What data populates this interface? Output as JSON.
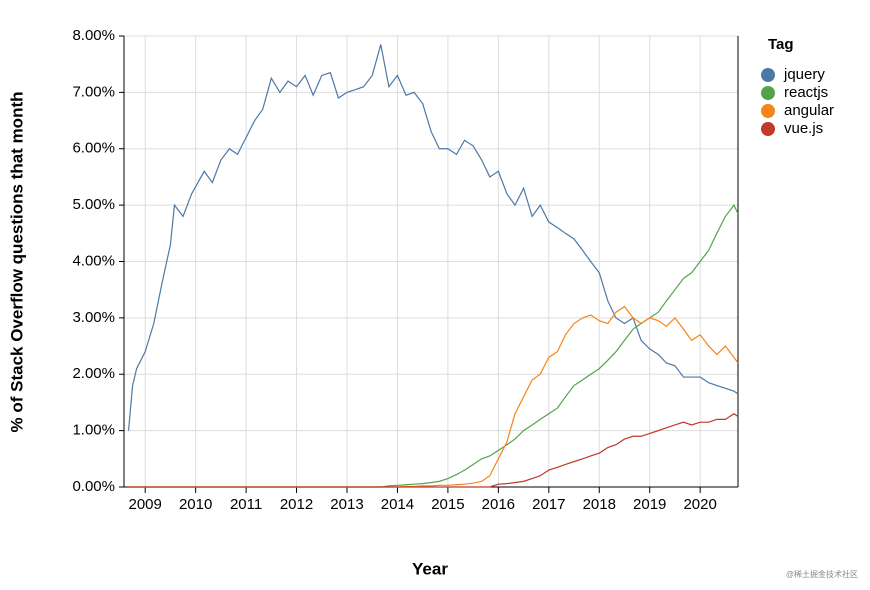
{
  "chart_data": {
    "type": "line",
    "x_label": "Year",
    "y_label": "% of Stack Overflow questions that month",
    "legend_title": "Tag",
    "legend": "right",
    "grid": true,
    "watermark": "@稀土掘金技术社区",
    "x": [
      2008.67,
      2008.75,
      2008.83,
      2009.0,
      2009.17,
      2009.33,
      2009.5,
      2009.58,
      2009.75,
      2009.92,
      2010.17,
      2010.33,
      2010.5,
      2010.67,
      2010.83,
      2011.0,
      2011.17,
      2011.33,
      2011.5,
      2011.67,
      2011.83,
      2012.0,
      2012.17,
      2012.33,
      2012.5,
      2012.67,
      2012.83,
      2013.0,
      2013.17,
      2013.33,
      2013.5,
      2013.67,
      2013.83,
      2014.0,
      2014.17,
      2014.33,
      2014.5,
      2014.67,
      2014.83,
      2015.0,
      2015.17,
      2015.33,
      2015.5,
      2015.67,
      2015.83,
      2016.0,
      2016.17,
      2016.33,
      2016.5,
      2016.67,
      2016.83,
      2017.0,
      2017.17,
      2017.33,
      2017.5,
      2017.67,
      2017.83,
      2018.0,
      2018.17,
      2018.33,
      2018.5,
      2018.67,
      2018.83,
      2019.0,
      2019.17,
      2019.33,
      2019.5,
      2019.67,
      2019.83,
      2020.0,
      2020.17,
      2020.33,
      2020.5,
      2020.67,
      2020.75
    ],
    "series": [
      {
        "name": "jquery",
        "color": "#4c78a8",
        "values": [
          1.0,
          1.8,
          2.1,
          2.4,
          2.9,
          3.6,
          4.3,
          5.0,
          4.8,
          5.2,
          5.6,
          5.4,
          5.8,
          6.0,
          5.9,
          6.2,
          6.5,
          6.7,
          7.25,
          7.0,
          7.2,
          7.1,
          7.3,
          6.95,
          7.3,
          7.35,
          6.9,
          7.0,
          7.05,
          7.1,
          7.3,
          7.85,
          7.1,
          7.3,
          6.95,
          7.0,
          6.8,
          6.3,
          6.0,
          6.0,
          5.9,
          6.15,
          6.05,
          5.8,
          5.5,
          5.6,
          5.2,
          5.0,
          5.3,
          4.8,
          5.0,
          4.7,
          4.6,
          4.5,
          4.4,
          4.2,
          4.0,
          3.8,
          3.3,
          3.0,
          2.9,
          3.0,
          2.6,
          2.45,
          2.35,
          2.2,
          2.15,
          1.95,
          1.95,
          1.95,
          1.85,
          1.8,
          1.75,
          1.7,
          1.65
        ]
      },
      {
        "name": "reactjs",
        "color": "#54a24b",
        "values": [
          0,
          0,
          0,
          0,
          0,
          0,
          0,
          0,
          0,
          0,
          0,
          0,
          0,
          0,
          0,
          0,
          0,
          0,
          0,
          0,
          0,
          0,
          0,
          0,
          0,
          0,
          0,
          0,
          0,
          0,
          0,
          0,
          0.02,
          0.03,
          0.04,
          0.05,
          0.06,
          0.08,
          0.1,
          0.15,
          0.22,
          0.3,
          0.4,
          0.5,
          0.55,
          0.65,
          0.75,
          0.85,
          1.0,
          1.1,
          1.2,
          1.3,
          1.4,
          1.6,
          1.8,
          1.9,
          2.0,
          2.1,
          2.25,
          2.4,
          2.6,
          2.8,
          2.9,
          3.0,
          3.1,
          3.3,
          3.5,
          3.7,
          3.8,
          4.0,
          4.2,
          4.5,
          4.8,
          5.0,
          4.85
        ]
      },
      {
        "name": "angular",
        "color": "#f58518",
        "values": [
          0,
          0,
          0,
          0,
          0,
          0,
          0,
          0,
          0,
          0,
          0,
          0,
          0,
          0,
          0,
          0,
          0,
          0,
          0,
          0,
          0,
          0,
          0,
          0,
          0,
          0,
          0,
          0,
          0,
          0,
          0,
          0,
          0,
          0,
          0.01,
          0.01,
          0.02,
          0.02,
          0.03,
          0.03,
          0.04,
          0.05,
          0.07,
          0.1,
          0.2,
          0.5,
          0.8,
          1.3,
          1.6,
          1.9,
          2.0,
          2.3,
          2.4,
          2.7,
          2.9,
          3.0,
          3.05,
          2.95,
          2.9,
          3.1,
          3.2,
          3.0,
          2.9,
          3.0,
          2.95,
          2.85,
          3.0,
          2.8,
          2.6,
          2.7,
          2.5,
          2.35,
          2.5,
          2.3,
          2.2
        ]
      },
      {
        "name": "vue.js",
        "color": "#c0392b",
        "values": [
          0,
          0,
          0,
          0,
          0,
          0,
          0,
          0,
          0,
          0,
          0,
          0,
          0,
          0,
          0,
          0,
          0,
          0,
          0,
          0,
          0,
          0,
          0,
          0,
          0,
          0,
          0,
          0,
          0,
          0,
          0,
          0,
          0,
          0,
          0,
          0,
          0,
          0,
          0,
          0,
          0,
          0,
          0,
          0,
          0,
          0.05,
          0.06,
          0.08,
          0.1,
          0.15,
          0.2,
          0.3,
          0.35,
          0.4,
          0.45,
          0.5,
          0.55,
          0.6,
          0.7,
          0.75,
          0.85,
          0.9,
          0.9,
          0.95,
          1.0,
          1.05,
          1.1,
          1.15,
          1.1,
          1.15,
          1.15,
          1.2,
          1.2,
          1.3,
          1.25
        ]
      }
    ],
    "xlim": [
      2008.58,
      2020.75
    ],
    "xticks": [
      2009,
      2010,
      2011,
      2012,
      2013,
      2014,
      2015,
      2016,
      2017,
      2018,
      2019,
      2020
    ],
    "ylim": [
      0,
      8
    ],
    "yticks": [
      {
        "value": 0,
        "label": "0.00%"
      },
      {
        "value": 1,
        "label": "1.00%"
      },
      {
        "value": 2,
        "label": "2.00%"
      },
      {
        "value": 3,
        "label": "3.00%"
      },
      {
        "value": 4,
        "label": "4.00%"
      },
      {
        "value": 5,
        "label": "5.00%"
      },
      {
        "value": 6,
        "label": "6.00%"
      },
      {
        "value": 7,
        "label": "7.00%"
      },
      {
        "value": 8,
        "label": "8.00%"
      }
    ]
  }
}
